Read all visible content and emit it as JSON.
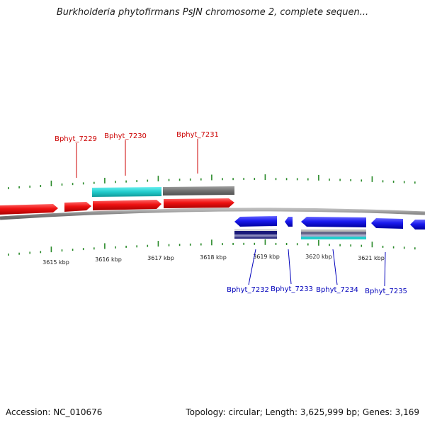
{
  "title": "Burkholderia phytofirmans PsJN chromosome 2, complete sequen...",
  "footer": {
    "accession": "Accession: NC_010676",
    "summary": "Topology: circular; Length: 3,625,999 bp; Genes: 3,169"
  },
  "colors": {
    "forward_gene": "#ee1111",
    "reverse_gene": "#1a1aee",
    "forward_label": "#cc0000",
    "reverse_label": "#0000bb",
    "tick": "#2a8a2a",
    "backbone": "#8a8a8a",
    "cds_cyan": "#22cccc",
    "cds_gray": "#707070"
  },
  "ticks": [
    "3615 kbp",
    "3616 kbp",
    "3617 kbp",
    "3618 kbp",
    "3619 kbp",
    "3620 kbp",
    "3621 kbp"
  ],
  "genes_forward": [
    "Bphyt_7229",
    "Bphyt_7230",
    "Bphyt_7231"
  ],
  "genes_reverse": [
    "Bphyt_7232",
    "Bphyt_7233",
    "Bphyt_7234",
    "Bphyt_7235"
  ]
}
